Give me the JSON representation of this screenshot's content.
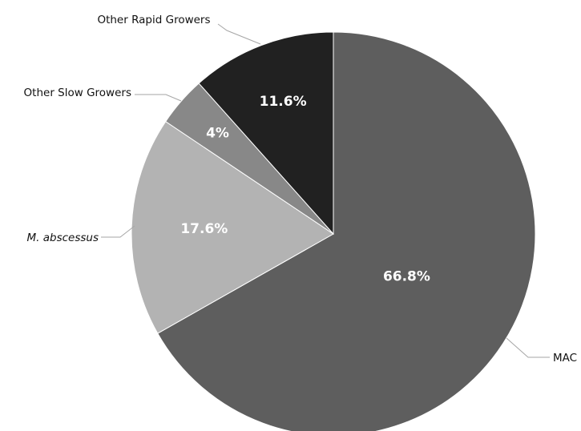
{
  "chart_data": {
    "type": "pie",
    "title": "",
    "start_angle_deg": 0,
    "direction": "clockwise",
    "slices": [
      {
        "name": "MAC",
        "value": 66.8,
        "value_label": "66.8%",
        "color": "#5e5e5e",
        "italic": false
      },
      {
        "name": "M. abscessus",
        "value": 17.6,
        "value_label": "17.6%",
        "color": "#b3b3b3",
        "italic": true
      },
      {
        "name": "Other Slow Growers",
        "value": 4,
        "value_label": "4%",
        "color": "#888888",
        "italic": false
      },
      {
        "name": "Other Rapid Growers",
        "value": 11.6,
        "value_label": "11.6%",
        "color": "#212121",
        "italic": false
      }
    ],
    "legend": "none",
    "category_labels": "outside with leader lines",
    "value_labels": "inside slices",
    "slice_border_color": "#ffffff"
  }
}
